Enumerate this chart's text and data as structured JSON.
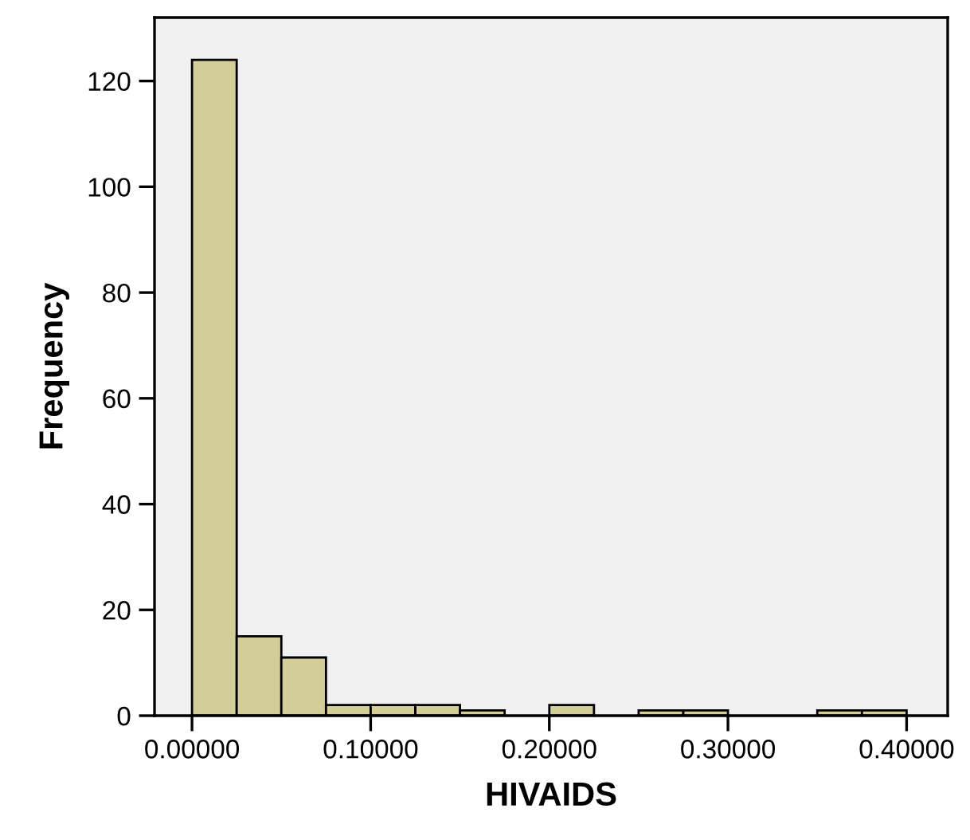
{
  "chart_data": {
    "type": "histogram",
    "xlabel": "HIVAIDS",
    "ylabel": "Frequency",
    "bins": [
      0,
      0.025,
      0.05,
      0.075,
      0.1,
      0.125,
      0.15,
      0.175,
      0.2,
      0.225,
      0.25,
      0.275,
      0.3,
      0.325,
      0.35,
      0.375,
      0.4
    ],
    "values": [
      124,
      15,
      11,
      2,
      2,
      2,
      1,
      0,
      2,
      0,
      1,
      1,
      0,
      0,
      1,
      1
    ],
    "color": "#d3ce97",
    "xlim": [
      -0.021,
      0.423
    ],
    "xticks": [
      {
        "value": 0,
        "label": "0.00000"
      },
      {
        "value": 0.1,
        "label": "0.10000"
      },
      {
        "value": 0.2,
        "label": "0.20000"
      },
      {
        "value": 0.3,
        "label": "0.30000"
      },
      {
        "value": 0.4,
        "label": "0.40000"
      }
    ],
    "ylim": [
      0,
      132
    ],
    "yticks": [
      0,
      20,
      40,
      60,
      80,
      100,
      120
    ],
    "grid": false,
    "legend": false
  }
}
